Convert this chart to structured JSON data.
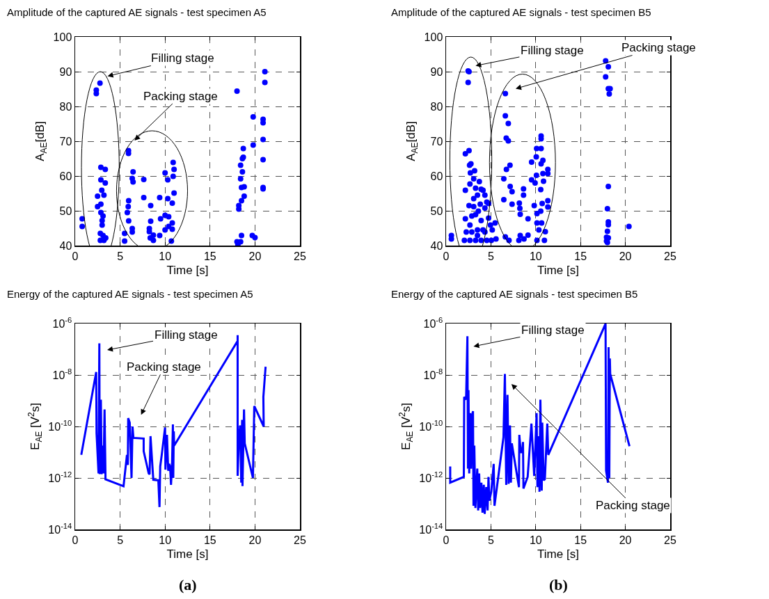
{
  "chart_data": [
    {
      "type": "scatter",
      "title": "Amplitude of the captured AE signals - test specimen A5",
      "xlabel": "Time [s]",
      "ylabel": "A$_{AE}$[dB]",
      "color": "#0000ff",
      "marker": "circle",
      "grid": true,
      "xlim": [
        0,
        25
      ],
      "ylim": [
        40,
        100
      ],
      "xticks": [
        0,
        5,
        10,
        15,
        20,
        25
      ],
      "yticks": [
        40,
        50,
        60,
        70,
        80,
        90,
        100
      ],
      "x": [
        0.78,
        0.78,
        2.35,
        2.35,
        2.76,
        2.86,
        3.35,
        2.86,
        3.35,
        2.96,
        2.49,
        3.2,
        2.49,
        2.86,
        2.86,
        3.1,
        3.0,
        3.0,
        2.8,
        3.1,
        3.4,
        2.8,
        3.2,
        5.93,
        5.93,
        6.44,
        6.35,
        6.44,
        7.63,
        7.63,
        8.4,
        9.4,
        10.0,
        10.3,
        10.9,
        11.0,
        10.9,
        11.0,
        10.3,
        10.8,
        5.95,
        5.9,
        5.8,
        5.95,
        6.35,
        6.35,
        5.5,
        5.5,
        8.4,
        8.25,
        8.25,
        8.35,
        8.7,
        8.7,
        9.5,
        9.4,
        10.0,
        10.4,
        10.0,
        10.4,
        10.8,
        10.8,
        10.7,
        21.1,
        21.1,
        18.0,
        19.8,
        20.9,
        20.9,
        20.9,
        19.8,
        18.7,
        18.7,
        18.6,
        18.4,
        18.6,
        18.4,
        20.9,
        18.5,
        18.8,
        20.9,
        20.9,
        18.8,
        18.5,
        18.2,
        18.2,
        18.5,
        19.7,
        18.0,
        18.4,
        18.1,
        20.0
      ],
      "values": [
        47.7,
        45.5,
        84.7,
        83.7,
        86.7,
        62.5,
        61.9,
        58.9,
        58,
        55.9,
        54.2,
        54.5,
        51.2,
        51.9,
        49.5,
        48.5,
        47.2,
        45.9,
        43.5,
        42.9,
        42.2,
        41.5,
        41.5,
        67.3,
        66.5,
        61.2,
        59.3,
        58.3,
        59,
        53.8,
        51.5,
        53.8,
        60.9,
        58.9,
        63.9,
        61.9,
        59.9,
        55.1,
        53.5,
        52.2,
        52.9,
        51.2,
        49.5,
        47.1,
        44.9,
        43.9,
        43.5,
        41.3,
        47,
        44.9,
        44,
        42.2,
        43,
        41.5,
        47.7,
        42.9,
        48.7,
        48.3,
        44.5,
        45.5,
        46.5,
        44.7,
        41.3,
        90,
        86.9,
        84.4,
        77,
        76.3,
        75.3,
        70.5,
        68.9,
        67.9,
        65.4,
        65,
        63.1,
        61.2,
        59.2,
        64.7,
        56.7,
        56.9,
        56.7,
        56.3,
        54.2,
        52.9,
        51.5,
        50.5,
        42.9,
        42.9,
        41.1,
        41.1,
        40.3,
        42.3
      ],
      "annotations": [
        "Filling stage",
        "Packing stage"
      ]
    },
    {
      "type": "scatter",
      "title": "Amplitude of the captured AE signals - test specimen B5",
      "xlabel": "Time [s]",
      "ylabel": "A$_{AE}$[dB]",
      "color": "#0000ff",
      "marker": "circle",
      "grid": true,
      "xlim": [
        0,
        25
      ],
      "ylim": [
        40,
        100
      ],
      "xticks": [
        0,
        5,
        10,
        15,
        20,
        25
      ],
      "yticks": [
        40,
        50,
        60,
        70,
        80,
        90,
        100
      ],
      "x": [
        2.46,
        2.56,
        2.46,
        2.56,
        2.15,
        2.62,
        2.77,
        2.71,
        3.18,
        3.08,
        3.71,
        2.66,
        2.15,
        3.29,
        3.91,
        3.5,
        4.12,
        4.33,
        2.56,
        3.08,
        3.81,
        4.54,
        2.15,
        2.66,
        3.29,
        3.91,
        4.74,
        4.95,
        5.47,
        2.25,
        2.87,
        3.5,
        4.33,
        5.15,
        5.57,
        0.59,
        0.59,
        2.04,
        2.66,
        3.29,
        3.91,
        4.54,
        5.05,
        3.5,
        4.12,
        3.08,
        4.33,
        4.74,
        2.87,
        3.6,
        6.61,
        6.61,
        6.94,
        6.71,
        6.94,
        7.13,
        6.73,
        6.44,
        7.15,
        7.36,
        8.64,
        8.64,
        7.36,
        6.44,
        8.17,
        8.23,
        8.27,
        9.14,
        10.6,
        10.6,
        10.1,
        10.6,
        10.06,
        9.54,
        10.6,
        10.8,
        11.35,
        11.35,
        10.8,
        10.08,
        9.54,
        9.93,
        10.87,
        10.56,
        11.35,
        10.72,
        11.35,
        9.83,
        10.14,
        10.56,
        10.14,
        10.66,
        10.35,
        11.07,
        6.61,
        7.02,
        8.27,
        8.69,
        9.14,
        10.14,
        10.97,
        8.12,
        17.8,
        18.1,
        17.8,
        18.1,
        18.3,
        18.2,
        18.1,
        18.0,
        18.1,
        18.1,
        18.0,
        20.4,
        17.9,
        18.1,
        17.9,
        18.0
      ],
      "values": [
        90.2,
        90,
        86.9,
        67.3,
        66.4,
        63.1,
        63.5,
        60.9,
        61.5,
        59.2,
        58.4,
        57.7,
        55.9,
        56.5,
        56.2,
        54.5,
        55.9,
        54.5,
        51.5,
        51.2,
        51.9,
        52.5,
        47.7,
        45.9,
        48.9,
        47.2,
        47.9,
        45.9,
        46.5,
        43.9,
        43.9,
        44.5,
        43.9,
        44.5,
        41.9,
        42.9,
        41.9,
        41.5,
        41.5,
        41.5,
        41.5,
        41.5,
        41.5,
        42.9,
        44.5,
        53.5,
        50.8,
        52.1,
        48.5,
        49.9,
        83.7,
        77.3,
        75.1,
        70.9,
        70.1,
        63.1,
        61.9,
        59.2,
        57,
        55.5,
        56.3,
        54.5,
        51.9,
        53.2,
        52.2,
        50.7,
        49,
        47.7,
        71.5,
        70.7,
        67.9,
        67.9,
        65.5,
        64,
        63.5,
        64.5,
        61.9,
        60.7,
        60.7,
        60.2,
        58.9,
        58,
        58.5,
        56.1,
        52.9,
        52.1,
        51.1,
        51.5,
        49.2,
        49.9,
        46.5,
        46.5,
        44.5,
        44,
        42.5,
        41.5,
        42.9,
        41.9,
        43,
        41.5,
        41.5,
        41.5,
        93.1,
        91.4,
        88.5,
        85.1,
        85.1,
        83.6,
        57,
        50.6,
        46.8,
        46,
        44.1,
        45.5,
        42.4,
        42.2,
        41.3,
        40.9
      ],
      "annotations": [
        "Filling stage",
        "Packing stage"
      ]
    },
    {
      "type": "line",
      "title": "Energy of the captured AE signals - test specimen A5",
      "xlabel": "Time [s]",
      "ylabel": "E$_{AE}$ [V$^{2}$s]",
      "color": "#0000ff",
      "line_style": "solid",
      "grid": true,
      "log": "y",
      "xlim": [
        0,
        25
      ],
      "ylim": [
        1e-14,
        1e-06
      ],
      "xticks": [
        0,
        5,
        10,
        15,
        20,
        25
      ],
      "yticks": [
        {
          "value": 1e-14,
          "label": "10$^{-14}$"
        },
        {
          "value": 1e-12,
          "label": "10$^{-12}$"
        },
        {
          "value": 1e-10,
          "label": "10$^{-10}$"
        },
        {
          "value": 1e-08,
          "label": "10$^{-8}$"
        },
        {
          "value": 1e-06,
          "label": "10$^{-6}$"
        }
      ],
      "x": [
        0.68,
        2.34,
        2.38,
        2.6,
        2.69,
        2.73,
        2.86,
        2.94,
        3.04,
        3.15,
        3.27,
        3.37,
        3.37,
        5.38,
        5.76,
        5.86,
        5.9,
        6.07,
        6.27,
        6.38,
        6.48,
        7.62,
        7.62,
        8.18,
        8.28,
        8.38,
        8.69,
        9.25,
        9.38,
        9.46,
        9.63,
        10.0,
        10.04,
        10.21,
        10.35,
        10.46,
        10.56,
        10.66,
        10.77,
        10.87,
        10.91,
        10.97,
        11.01,
        18.07,
        18.07,
        18.07,
        18.22,
        18.36,
        18.47,
        18.57,
        18.61,
        18.78,
        18.86,
        19.77,
        19.92,
        20.97,
        20.93,
        21.18
      ],
      "values": [
        7.9e-12,
        1.3e-08,
        5.4e-11,
        1.5e-12,
        1.7e-07,
        1.4e-12,
        1.1e-09,
        1.4e-12,
        1.8e-11,
        1.5e-12,
        4.6e-10,
        1.4e-12,
        8.9e-13,
        4.8e-13,
        7.9e-12,
        3.2e-12,
        2.1e-10,
        1.4e-10,
        1e-12,
        1e-10,
        3.6e-11,
        3.4e-11,
        1.1e-11,
        1.5e-12,
        1.4e-12,
        4.2e-11,
        8.5e-13,
        8.1e-13,
        7.4e-14,
        2.8e-12,
        7.9e-12,
        9.1e-11,
        2.1e-12,
        4.7e-11,
        1.9e-12,
        3.5e-12,
        2.8e-12,
        5.4e-13,
        2.8e-12,
        1.2e-10,
        1e-12,
        6.5e-11,
        1.8e-11,
        2.1e-07,
        3.5e-07,
        1.2e-12,
        4.2e-11,
        1.1e-10,
        6.6e-13,
        1.8e-10,
        4.8e-13,
        4.6e-10,
        2.2e-11,
        1e-12,
        6.2e-10,
        1e-10,
        1.4e-09,
        2.1e-08
      ],
      "annotations": [
        "Filling stage",
        "Packing stage",
        "(a)"
      ]
    },
    {
      "type": "line",
      "title": "Energy of the captured AE signals - test specimen B5",
      "xlabel": "Time [s]",
      "ylabel": "E$_{AE}$ [V$^{2}$s]",
      "color": "#0000ff",
      "line_style": "solid",
      "grid": true,
      "log": "y",
      "xlim": [
        0,
        25
      ],
      "ylim": [
        1e-14,
        1e-06
      ],
      "xticks": [
        0,
        5,
        10,
        15,
        20,
        25
      ],
      "yticks": [
        {
          "value": 1e-14,
          "label": "10$^{-14}$"
        },
        {
          "value": 1e-12,
          "label": "10$^{-12}$"
        },
        {
          "value": 1e-10,
          "label": "10$^{-10}$"
        },
        {
          "value": 1e-08,
          "label": "10$^{-8}$"
        },
        {
          "value": 1e-06,
          "label": "10$^{-6}$"
        }
      ],
      "x": [
        0.46,
        0.46,
        1.98,
        2.02,
        2.23,
        2.38,
        2.44,
        2.5,
        2.58,
        2.69,
        2.79,
        2.9,
        3.0,
        3.06,
        3.15,
        3.27,
        3.48,
        3.58,
        3.69,
        3.79,
        3.94,
        4.06,
        4.21,
        4.31,
        4.48,
        4.63,
        4.73,
        4.83,
        5.04,
        5.31,
        5.4,
        6.4,
        6.56,
        6.71,
        6.85,
        6.98,
        7.13,
        7.23,
        7.33,
        8.13,
        8.17,
        8.33,
        8.48,
        8.58,
        8.63,
        9.1,
        9.52,
        9.83,
        10.1,
        10.19,
        10.35,
        10.42,
        10.52,
        10.67,
        10.73,
        10.88,
        11.02,
        11.29,
        11.4,
        17.79,
        17.85,
        18.06,
        18.13,
        18.21,
        18.27,
        18.31,
        20.46
      ],
      "values": [
        2.8e-12,
        6.6e-13,
        1.1e-12,
        1.4e-09,
        1.1e-09,
        3.2e-07,
        2.3e-12,
        2.6e-09,
        1.5e-12,
        3.3e-10,
        2.3e-12,
        2.7e-10,
        3.9e-10,
        8.3e-14,
        1.8e-11,
        6.8e-14,
        2.3e-12,
        5.5e-14,
        1.5e-12,
        6.8e-14,
        6.6e-13,
        4.5e-14,
        5.4e-13,
        4e-14,
        4.4e-13,
        5.5e-14,
        1.1e-12,
        1.3e-13,
        2.9e-13,
        3.5e-12,
        8.3e-14,
        3.8e-11,
        1.1e-08,
        5.4e-13,
        1.7e-09,
        5.9e-13,
        1.1e-10,
        6.6e-13,
        2.2e-11,
        4.4e-13,
        4.7e-11,
        1e-11,
        1e-11,
        2.5e-11,
        3.9e-13,
        1.1e-12,
        1.3e-10,
        1.2e-12,
        3.3e-10,
        4.4e-13,
        4.2e-11,
        2.9e-13,
        1.1e-09,
        3.2e-13,
        1.4e-10,
        8.1e-13,
        8.9e-13,
        1.3e-10,
        7.9e-12,
        9.8e-07,
        1.9e-12,
        6.6e-13,
        1.2e-07,
        1e-12,
        4.4e-08,
        1.1e-08,
        1.7e-11
      ],
      "annotations": [
        "Filling stage",
        "Packing stage",
        "(b)"
      ]
    }
  ]
}
